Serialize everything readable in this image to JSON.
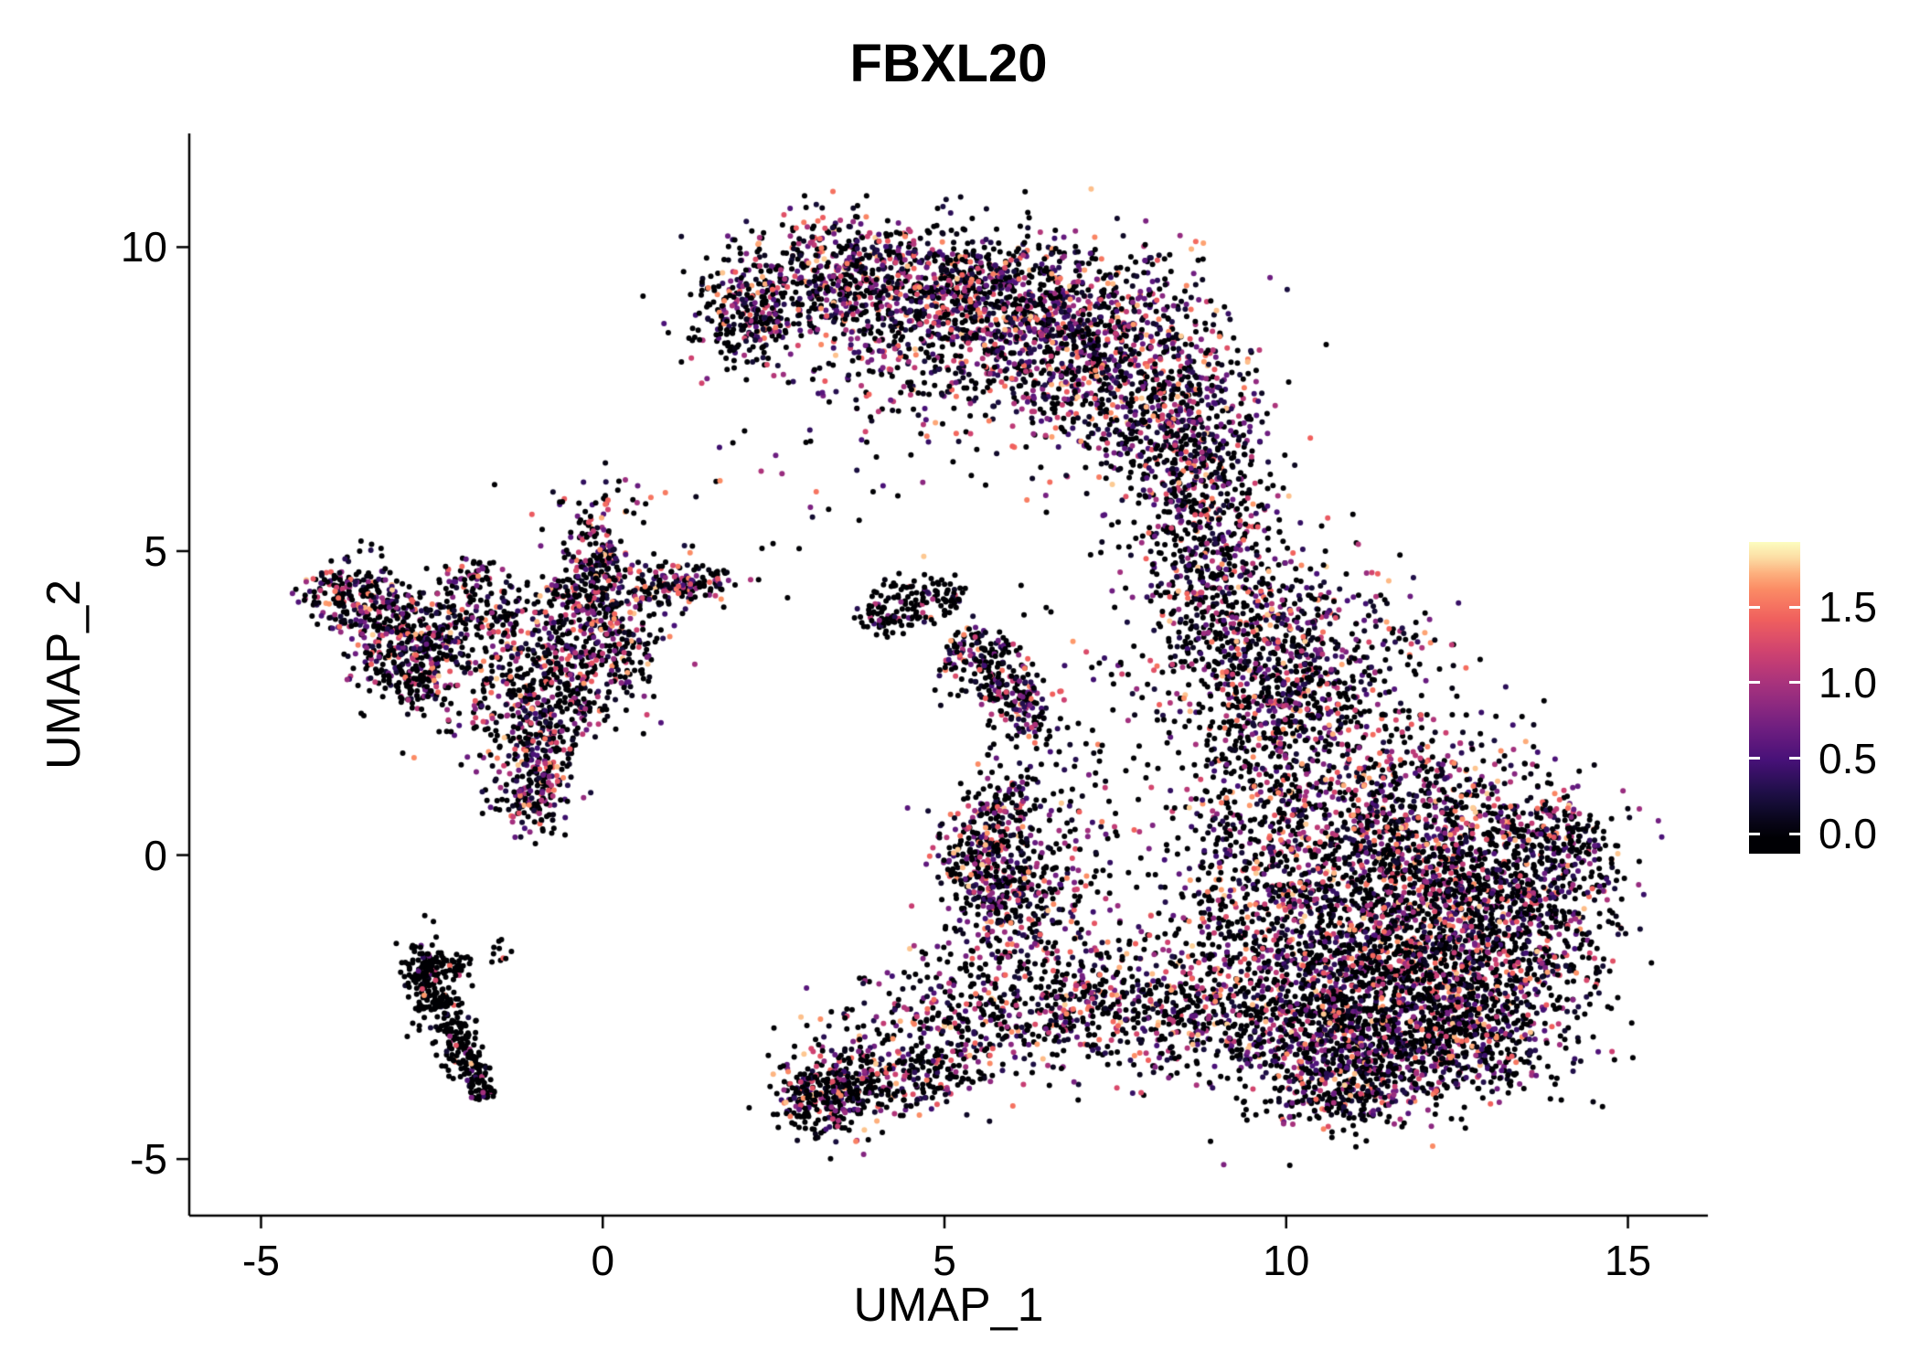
{
  "title": "FBXL20",
  "axes": {
    "x": {
      "label": "UMAP_1",
      "ticks": [
        -5,
        0,
        5,
        10,
        15
      ],
      "tick_labels": [
        "-5",
        "0",
        "5",
        "10",
        "15"
      ]
    },
    "y": {
      "label": "UMAP_2",
      "ticks": [
        -5,
        0,
        5,
        10
      ],
      "tick_labels": [
        "-5",
        "0",
        "5",
        "10"
      ]
    }
  },
  "colorbar": {
    "ticks": [
      0.0,
      0.5,
      1.0,
      1.5
    ],
    "tick_labels": [
      "0.0",
      "0.5",
      "1.0",
      "1.5"
    ],
    "domain": [
      -0.13,
      1.93
    ],
    "data_max": 1.9
  },
  "colors": {
    "background": "#FFFFFF",
    "axis": "#000000",
    "text": "#000000",
    "magma_stops": [
      "#000004",
      "#180F3E",
      "#451077",
      "#721F81",
      "#9F2F7F",
      "#CD4071",
      "#F1605D",
      "#FD9567",
      "#FCFDBF"
    ]
  },
  "chart_data": {
    "type": "scatter",
    "title": "FBXL20",
    "xlabel": "UMAP_1",
    "ylabel": "UMAP_2",
    "xlim": [
      -6.05,
      16.17
    ],
    "ylim": [
      -5.93,
      11.87
    ],
    "color_scale": "magma",
    "value_range": [
      0,
      1.9
    ],
    "legend_position": "right",
    "grid": false,
    "clusters": [
      {
        "name": "crescent-tip-left",
        "cx": 2.1,
        "cy": 8.9,
        "sx": 0.45,
        "sy": 0.4,
        "n": 260,
        "p0": 0.5
      },
      {
        "name": "crescent-left",
        "cx": 3.4,
        "cy": 9.5,
        "sx": 0.75,
        "sy": 0.5,
        "n": 420,
        "p0": 0.4
      },
      {
        "name": "crescent-mid",
        "cx": 4.9,
        "cy": 9.3,
        "sx": 0.9,
        "sy": 0.55,
        "n": 600,
        "p0": 0.35
      },
      {
        "name": "crescent-mid-right",
        "cx": 6.4,
        "cy": 8.9,
        "sx": 0.9,
        "sy": 0.65,
        "n": 700,
        "p0": 0.35
      },
      {
        "name": "crescent-right",
        "cx": 7.7,
        "cy": 7.9,
        "sx": 0.8,
        "sy": 0.85,
        "n": 700,
        "p0": 0.35
      },
      {
        "name": "crescent-lower-right",
        "cx": 8.6,
        "cy": 6.7,
        "sx": 0.55,
        "sy": 0.75,
        "n": 420,
        "p0": 0.4
      },
      {
        "name": "crescent-inner",
        "cx": 4.6,
        "cy": 8.1,
        "sx": 1.3,
        "sy": 0.7,
        "n": 160,
        "p0": 0.45
      },
      {
        "name": "crescent-below",
        "cx": 5.6,
        "cy": 7.9,
        "sx": 1.4,
        "sy": 0.6,
        "n": 140,
        "p0": 0.4
      },
      {
        "name": "neck-upper",
        "cx": 9.0,
        "cy": 5.4,
        "sx": 0.45,
        "sy": 0.7,
        "n": 180,
        "p0": 0.5
      },
      {
        "name": "neck-lower",
        "cx": 8.8,
        "cy": 4.3,
        "sx": 0.5,
        "sy": 0.7,
        "n": 220,
        "p0": 0.5
      },
      {
        "name": "right-upper-left",
        "cx": 9.6,
        "cy": 3.4,
        "sx": 0.6,
        "sy": 0.8,
        "n": 320,
        "p0": 0.5
      },
      {
        "name": "right-upper",
        "cx": 10.4,
        "cy": 2.9,
        "sx": 0.8,
        "sy": 0.9,
        "n": 600,
        "p0": 0.45
      },
      {
        "name": "right-upper-sparse",
        "cx": 9.4,
        "cy": 1.0,
        "sx": 0.7,
        "sy": 1.2,
        "n": 260,
        "p0": 0.55
      },
      {
        "name": "right-core-upper",
        "cx": 11.3,
        "cy": 0.4,
        "sx": 1.1,
        "sy": 1.0,
        "n": 900,
        "p0": 0.45
      },
      {
        "name": "right-core-east",
        "cx": 12.6,
        "cy": -0.4,
        "sx": 1.0,
        "sy": 0.9,
        "n": 700,
        "p0": 0.5
      },
      {
        "name": "right-core",
        "cx": 11.0,
        "cy": -1.5,
        "sx": 1.0,
        "sy": 0.9,
        "n": 800,
        "p0": 0.45
      },
      {
        "name": "right-core-lower",
        "cx": 12.2,
        "cy": -2.2,
        "sx": 1.0,
        "sy": 0.8,
        "n": 700,
        "p0": 0.5
      },
      {
        "name": "right-east",
        "cx": 13.5,
        "cy": -0.9,
        "sx": 0.7,
        "sy": 0.9,
        "n": 420,
        "p0": 0.55
      },
      {
        "name": "right-tip",
        "cx": 14.1,
        "cy": 0.2,
        "sx": 0.4,
        "sy": 0.5,
        "n": 150,
        "p0": 0.5
      },
      {
        "name": "right-southwest",
        "cx": 10.3,
        "cy": -2.8,
        "sx": 0.8,
        "sy": 0.7,
        "n": 500,
        "p0": 0.5
      },
      {
        "name": "right-south",
        "cx": 11.3,
        "cy": -3.3,
        "sx": 0.9,
        "sy": 0.5,
        "n": 420,
        "p0": 0.45
      },
      {
        "name": "right-southeast",
        "cx": 12.8,
        "cy": -3.0,
        "sx": 0.6,
        "sy": 0.5,
        "n": 260,
        "p0": 0.5
      },
      {
        "name": "right-south-tip",
        "cx": 10.8,
        "cy": -3.9,
        "sx": 0.6,
        "sy": 0.3,
        "n": 160,
        "p0": 0.5
      },
      {
        "name": "right-west-sparse",
        "cx": 9.3,
        "cy": -0.8,
        "sx": 0.6,
        "sy": 1.0,
        "n": 220,
        "p0": 0.55
      },
      {
        "name": "bridge-band-1",
        "cx": 6.1,
        "cy": -2.2,
        "sx": 0.8,
        "sy": 0.6,
        "n": 260,
        "p0": 0.5
      },
      {
        "name": "bridge-band-2",
        "cx": 7.3,
        "cy": -2.5,
        "sx": 0.8,
        "sy": 0.5,
        "n": 260,
        "p0": 0.5
      },
      {
        "name": "bridge-band-3",
        "cx": 8.4,
        "cy": -2.6,
        "sx": 0.6,
        "sy": 0.5,
        "n": 220,
        "p0": 0.5
      },
      {
        "name": "bridge-diagonal",
        "cx": 5.0,
        "cy": -2.9,
        "sx": 0.9,
        "sy": 0.5,
        "n": 260,
        "p0": 0.5
      },
      {
        "name": "bottom-mid-dense",
        "cx": 3.2,
        "cy": -4.0,
        "sx": 0.35,
        "sy": 0.35,
        "n": 240,
        "p0": 0.55
      },
      {
        "name": "bottom-mid-east",
        "cx": 3.9,
        "cy": -3.8,
        "sx": 0.5,
        "sy": 0.3,
        "n": 160,
        "p0": 0.5
      },
      {
        "name": "bottom-mid-tail",
        "cx": 4.6,
        "cy": -3.6,
        "sx": 0.5,
        "sy": 0.25,
        "n": 100,
        "p0": 0.5
      },
      {
        "name": "mid-dense",
        "cx": 5.6,
        "cy": -0.1,
        "sx": 0.4,
        "sy": 0.5,
        "n": 300,
        "p0": 0.45
      },
      {
        "name": "mid-south",
        "cx": 6.0,
        "cy": -0.9,
        "sx": 0.4,
        "sy": 0.4,
        "n": 160,
        "p0": 0.45
      },
      {
        "name": "mid-east-sparse",
        "cx": 6.7,
        "cy": -0.4,
        "sx": 0.6,
        "sy": 0.7,
        "n": 110,
        "p0": 0.5
      },
      {
        "name": "mid-north",
        "cx": 5.9,
        "cy": 0.9,
        "sx": 0.3,
        "sy": 0.4,
        "n": 90,
        "p0": 0.5
      },
      {
        "name": "mid-north-sparse",
        "cx": 6.9,
        "cy": 1.3,
        "sx": 0.5,
        "sy": 0.9,
        "n": 70,
        "p0": 0.55
      },
      {
        "name": "small-v-west",
        "cx": 4.4,
        "cy": 4.1,
        "sx": 0.3,
        "sy": 0.25,
        "n": 90,
        "p0": 0.8
      },
      {
        "name": "small-v-east",
        "cx": 5.0,
        "cy": 4.3,
        "sx": 0.22,
        "sy": 0.2,
        "n": 45,
        "p0": 0.75
      },
      {
        "name": "small-v-tip",
        "cx": 4.0,
        "cy": 3.9,
        "sx": 0.15,
        "sy": 0.15,
        "n": 30,
        "p0": 0.8
      },
      {
        "name": "small-diag-upper",
        "cx": 5.5,
        "cy": 3.3,
        "sx": 0.3,
        "sy": 0.3,
        "n": 130,
        "p0": 0.5
      },
      {
        "name": "small-diag-lower",
        "cx": 5.9,
        "cy": 2.7,
        "sx": 0.3,
        "sy": 0.3,
        "n": 110,
        "p0": 0.45
      },
      {
        "name": "small-diag-tip",
        "cx": 6.15,
        "cy": 2.3,
        "sx": 0.2,
        "sy": 0.25,
        "n": 60,
        "p0": 0.5
      },
      {
        "name": "left-far-main",
        "cx": -3.55,
        "cy": 4.15,
        "sx": 0.35,
        "sy": 0.35,
        "n": 160,
        "p0": 0.45
      },
      {
        "name": "left-far-east",
        "cx": -3.1,
        "cy": 3.85,
        "sx": 0.3,
        "sy": 0.3,
        "n": 110,
        "p0": 0.5
      },
      {
        "name": "left-far-tip",
        "cx": -3.95,
        "cy": 4.35,
        "sx": 0.2,
        "sy": 0.2,
        "n": 60,
        "p0": 0.5
      },
      {
        "name": "left-dark-blob",
        "cx": -2.85,
        "cy": 3.05,
        "sx": 0.35,
        "sy": 0.35,
        "n": 220,
        "p0": 0.65
      },
      {
        "name": "left-blob-upper",
        "cx": -2.45,
        "cy": 3.6,
        "sx": 0.3,
        "sy": 0.3,
        "n": 130,
        "p0": 0.5
      },
      {
        "name": "left-central-low",
        "cx": -0.9,
        "cy": 2.6,
        "sx": 0.5,
        "sy": 0.5,
        "n": 260,
        "p0": 0.45
      },
      {
        "name": "left-central",
        "cx": -0.4,
        "cy": 3.3,
        "sx": 0.45,
        "sy": 0.5,
        "n": 220,
        "p0": 0.45
      },
      {
        "name": "left-central-up",
        "cx": -0.2,
        "cy": 4.3,
        "sx": 0.35,
        "sy": 0.4,
        "n": 190,
        "p0": 0.45
      },
      {
        "name": "left-branch-vert",
        "cx": -0.1,
        "cy": 5.2,
        "sx": 0.2,
        "sy": 0.4,
        "n": 85,
        "p0": 0.5
      },
      {
        "name": "left-branch-horiz",
        "cx": 0.6,
        "cy": 4.5,
        "sx": 0.5,
        "sy": 0.25,
        "n": 130,
        "p0": 0.45
      },
      {
        "name": "left-branch-horiz2",
        "cx": 1.3,
        "cy": 4.5,
        "sx": 0.35,
        "sy": 0.15,
        "n": 80,
        "p0": 0.45
      },
      {
        "name": "left-central-east",
        "cx": 0.4,
        "cy": 3.4,
        "sx": 0.3,
        "sy": 0.3,
        "n": 100,
        "p0": 0.5
      },
      {
        "name": "left-mid-upper",
        "cx": -1.5,
        "cy": 3.9,
        "sx": 0.4,
        "sy": 0.3,
        "n": 130,
        "p0": 0.5
      },
      {
        "name": "left-mid-tip",
        "cx": -1.9,
        "cy": 4.6,
        "sx": 0.25,
        "sy": 0.2,
        "n": 60,
        "p0": 0.5
      },
      {
        "name": "left-arm-down",
        "cx": -0.95,
        "cy": 1.6,
        "sx": 0.3,
        "sy": 0.4,
        "n": 150,
        "p0": 0.45
      },
      {
        "name": "left-arm-tip",
        "cx": -1.05,
        "cy": 0.95,
        "sx": 0.25,
        "sy": 0.3,
        "n": 110,
        "p0": 0.4
      },
      {
        "name": "left-sparse-gap",
        "cx": -1.8,
        "cy": 2.3,
        "sx": 0.5,
        "sy": 0.5,
        "n": 60,
        "p0": 0.55
      },
      {
        "name": "left-top-strays",
        "cx": 0.0,
        "cy": 5.85,
        "sx": 0.7,
        "sy": 0.15,
        "n": 22,
        "p0": 0.5
      },
      {
        "name": "line-top",
        "cx": -2.6,
        "cy": -1.9,
        "sx": 0.15,
        "sy": 0.25,
        "n": 85,
        "p0": 0.88
      },
      {
        "name": "line-2",
        "cx": -2.42,
        "cy": -2.4,
        "sx": 0.15,
        "sy": 0.3,
        "n": 90,
        "p0": 0.88
      },
      {
        "name": "line-3",
        "cx": -2.15,
        "cy": -2.95,
        "sx": 0.14,
        "sy": 0.3,
        "n": 80,
        "p0": 0.88
      },
      {
        "name": "line-4",
        "cx": -1.92,
        "cy": -3.45,
        "sx": 0.12,
        "sy": 0.25,
        "n": 70,
        "p0": 0.88
      },
      {
        "name": "line-tip",
        "cx": -1.75,
        "cy": -3.85,
        "sx": 0.1,
        "sy": 0.15,
        "n": 40,
        "p0": 0.85
      },
      {
        "name": "line-branch",
        "cx": -2.25,
        "cy": -1.85,
        "sx": 0.25,
        "sy": 0.12,
        "n": 50,
        "p0": 0.85
      },
      {
        "name": "line-stray",
        "cx": -1.55,
        "cy": -1.65,
        "sx": 0.12,
        "sy": 0.1,
        "n": 10,
        "p0": 0.8
      },
      {
        "name": "stray-upper-gap",
        "cx": 3.0,
        "cy": 6.0,
        "sx": 1.2,
        "sy": 0.8,
        "n": 25,
        "p0": 0.5
      },
      {
        "name": "stray-mid-gap",
        "cx": 7.6,
        "cy": 3.3,
        "sx": 0.8,
        "sy": 0.8,
        "n": 40,
        "p0": 0.5
      },
      {
        "name": "stray-neck-west",
        "cx": 8.3,
        "cy": 5.5,
        "sx": 0.5,
        "sy": 0.5,
        "n": 30,
        "p0": 0.5
      }
    ]
  }
}
